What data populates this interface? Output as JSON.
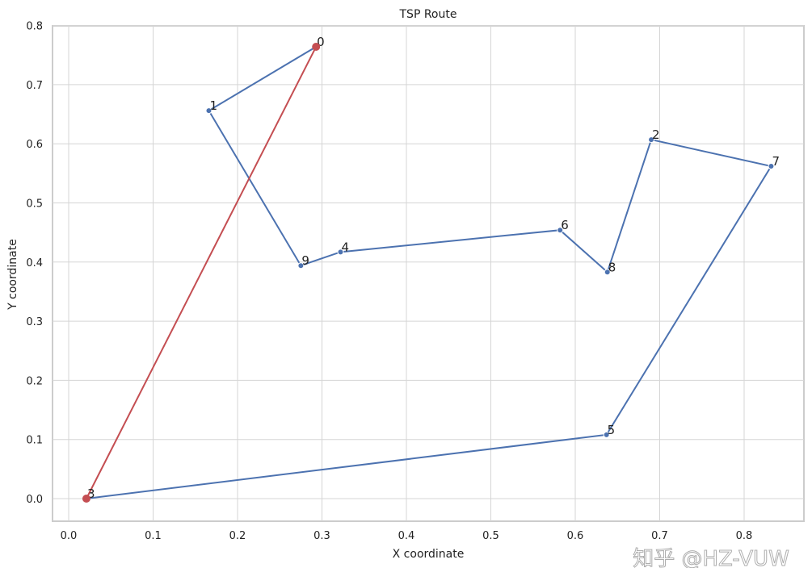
{
  "chart_data": {
    "type": "line",
    "title": "TSP Route",
    "xlabel": "X coordinate",
    "ylabel": "Y coordinate",
    "xlim": [
      -0.02,
      0.87
    ],
    "ylim": [
      -0.035,
      0.8
    ],
    "xticks": [
      "0.0",
      "0.1",
      "0.2",
      "0.3",
      "0.4",
      "0.5",
      "0.6",
      "0.7",
      "0.8"
    ],
    "yticks": [
      "0.0",
      "0.1",
      "0.2",
      "0.3",
      "0.4",
      "0.5",
      "0.6",
      "0.7",
      "0.8"
    ],
    "grid": true,
    "points": [
      {
        "label": "0",
        "x": 0.293,
        "y": 0.764
      },
      {
        "label": "1",
        "x": 0.166,
        "y": 0.656
      },
      {
        "label": "2",
        "x": 0.69,
        "y": 0.607
      },
      {
        "label": "3",
        "x": 0.021,
        "y": 0.0
      },
      {
        "label": "4",
        "x": 0.322,
        "y": 0.417
      },
      {
        "label": "5",
        "x": 0.637,
        "y": 0.108
      },
      {
        "label": "6",
        "x": 0.582,
        "y": 0.454
      },
      {
        "label": "7",
        "x": 0.832,
        "y": 0.562
      },
      {
        "label": "8",
        "x": 0.638,
        "y": 0.383
      },
      {
        "label": "9",
        "x": 0.275,
        "y": 0.394
      }
    ],
    "route": [
      0,
      1,
      9,
      4,
      6,
      8,
      2,
      7,
      5,
      3
    ],
    "closing_edge": [
      3,
      0
    ],
    "route_color": "#4c72b0",
    "closing_color": "#c44e52"
  },
  "watermark": "知乎 @HZ-VUW"
}
